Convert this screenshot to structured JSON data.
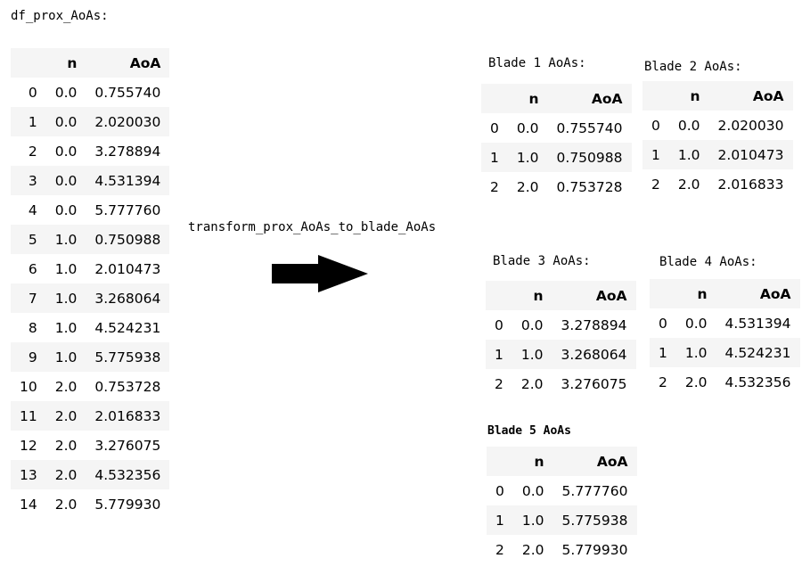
{
  "main_df": {
    "title": "df_prox_AoAs:",
    "columns": [
      "",
      "n",
      "AoA"
    ],
    "rows": [
      [
        "0",
        "0.0",
        "0.755740"
      ],
      [
        "1",
        "0.0",
        "2.020030"
      ],
      [
        "2",
        "0.0",
        "3.278894"
      ],
      [
        "3",
        "0.0",
        "4.531394"
      ],
      [
        "4",
        "0.0",
        "5.777760"
      ],
      [
        "5",
        "1.0",
        "0.750988"
      ],
      [
        "6",
        "1.0",
        "2.010473"
      ],
      [
        "7",
        "1.0",
        "3.268064"
      ],
      [
        "8",
        "1.0",
        "4.524231"
      ],
      [
        "9",
        "1.0",
        "5.775938"
      ],
      [
        "10",
        "2.0",
        "0.753728"
      ],
      [
        "11",
        "2.0",
        "2.016833"
      ],
      [
        "12",
        "2.0",
        "3.276075"
      ],
      [
        "13",
        "2.0",
        "4.532356"
      ],
      [
        "14",
        "2.0",
        "5.779930"
      ]
    ]
  },
  "transform_label": "transform_prox_AoAs_to_blade_AoAs",
  "blades": [
    {
      "title": "Blade 1 AoAs:",
      "columns": [
        "",
        "n",
        "AoA"
      ],
      "rows": [
        [
          "0",
          "0.0",
          "0.755740"
        ],
        [
          "1",
          "1.0",
          "0.750988"
        ],
        [
          "2",
          "2.0",
          "0.753728"
        ]
      ]
    },
    {
      "title": "Blade 2 AoAs:",
      "columns": [
        "",
        "n",
        "AoA"
      ],
      "rows": [
        [
          "0",
          "0.0",
          "2.020030"
        ],
        [
          "1",
          "1.0",
          "2.010473"
        ],
        [
          "2",
          "2.0",
          "2.016833"
        ]
      ]
    },
    {
      "title": "Blade 3 AoAs:",
      "columns": [
        "",
        "n",
        "AoA"
      ],
      "rows": [
        [
          "0",
          "0.0",
          "3.278894"
        ],
        [
          "1",
          "1.0",
          "3.268064"
        ],
        [
          "2",
          "2.0",
          "3.276075"
        ]
      ]
    },
    {
      "title": "Blade 4 AoAs:",
      "columns": [
        "",
        "n",
        "AoA"
      ],
      "rows": [
        [
          "0",
          "0.0",
          "4.531394"
        ],
        [
          "1",
          "1.0",
          "4.524231"
        ],
        [
          "2",
          "2.0",
          "4.532356"
        ]
      ]
    },
    {
      "title": "Blade 5 AoAs",
      "columns": [
        "",
        "n",
        "AoA"
      ],
      "rows": [
        [
          "0",
          "0.0",
          "5.777760"
        ],
        [
          "1",
          "1.0",
          "5.775938"
        ],
        [
          "2",
          "2.0",
          "5.779930"
        ]
      ]
    }
  ]
}
